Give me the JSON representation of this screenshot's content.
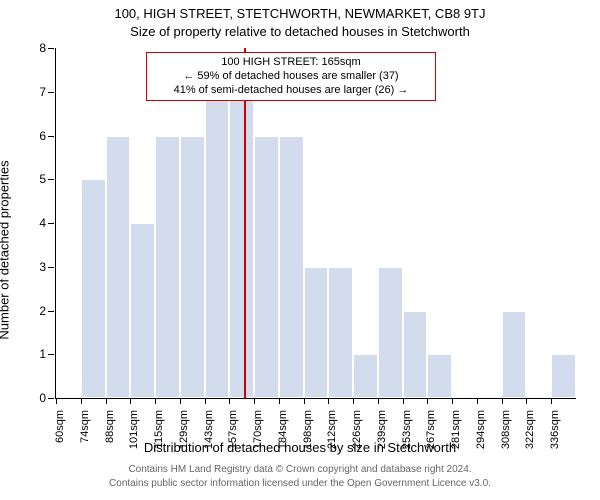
{
  "titles": {
    "address": "100, HIGH STREET, STETCHWORTH, NEWMARKET, CB8 9TJ",
    "subtitle": "Size of property relative to detached houses in Stetchworth"
  },
  "axes": {
    "ylabel": "Number of detached properties",
    "xlabel": "Distribution of detached houses by size in Stetchworth",
    "ylim_max": 8,
    "yticks": [
      0,
      1,
      2,
      3,
      4,
      5,
      6,
      7,
      8
    ]
  },
  "style": {
    "bar_fill": "#d2dcec",
    "bar_border": "#ffffff",
    "axis_color": "#000000",
    "refline_color": "#cc0000",
    "annot_border": "#cc0000",
    "background": "#ffffff",
    "footer_color": "#666666",
    "title_fontsize": 13,
    "label_fontsize": 13,
    "tick_fontsize": 12,
    "xtick_fontsize": 11,
    "annot_fontsize": 11,
    "footer_fontsize": 10
  },
  "chart": {
    "type": "histogram",
    "categories": [
      "60sqm",
      "74sqm",
      "88sqm",
      "101sqm",
      "115sqm",
      "129sqm",
      "143sqm",
      "157sqm",
      "170sqm",
      "184sqm",
      "198sqm",
      "212sqm",
      "226sqm",
      "239sqm",
      "253sqm",
      "267sqm",
      "281sqm",
      "294sqm",
      "308sqm",
      "322sqm",
      "336sqm"
    ],
    "values": [
      0,
      5,
      6,
      4,
      6,
      6,
      7,
      7,
      6,
      6,
      3,
      3,
      1,
      3,
      2,
      1,
      0,
      0,
      2,
      0,
      1
    ],
    "reference_index": 7.6
  },
  "annotation": {
    "line1": "100 HIGH STREET: 165sqm",
    "line2": "← 59% of detached houses are smaller (37)",
    "line3": "41% of semi-detached houses are larger (26) →"
  },
  "footer": {
    "line1": "Contains HM Land Registry data © Crown copyright and database right 2024.",
    "line2": "Contains public sector information licensed under the Open Government Licence v3.0."
  }
}
